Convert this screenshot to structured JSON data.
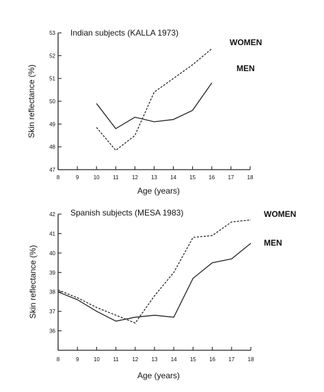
{
  "chart_data": [
    {
      "type": "line",
      "title": "Indian subjects (KALLA 1973)",
      "xlabel": "Age (years)",
      "ylabel": "Skin reflectance (%)",
      "xlim": [
        8,
        18
      ],
      "ylim": [
        47,
        53
      ],
      "xticks": [
        8,
        9,
        10,
        11,
        12,
        13,
        14,
        15,
        16,
        17,
        18
      ],
      "yticks": [
        47,
        48,
        49,
        50,
        51,
        52,
        53
      ],
      "series": [
        {
          "name": "MEN",
          "style": "solid",
          "x": [
            10,
            11,
            12,
            13,
            14,
            15,
            16
          ],
          "y": [
            49.9,
            48.8,
            49.3,
            49.1,
            49.2,
            49.6,
            50.8
          ]
        },
        {
          "name": "WOMEN",
          "style": "dashed",
          "x": [
            10,
            11,
            12,
            13,
            14,
            15,
            16
          ],
          "y": [
            48.85,
            47.85,
            48.5,
            50.4,
            51.0,
            51.6,
            52.3
          ]
        }
      ]
    },
    {
      "type": "line",
      "title": "Spanish subjects (MESA  1983)",
      "xlabel": "Age (years)",
      "ylabel": "Skin reflectance (%)",
      "xlim": [
        8,
        18
      ],
      "ylim": [
        35,
        42
      ],
      "xticks": [
        8,
        9,
        10,
        11,
        12,
        13,
        14,
        15,
        16,
        17,
        18
      ],
      "yticks": [
        36,
        37,
        38,
        39,
        40,
        41,
        42
      ],
      "series": [
        {
          "name": "MEN",
          "style": "solid",
          "x": [
            8,
            9,
            10,
            11,
            12,
            13,
            14,
            15,
            16,
            17,
            18
          ],
          "y": [
            38.0,
            37.6,
            37.0,
            36.5,
            36.7,
            36.8,
            36.7,
            38.7,
            39.5,
            39.7,
            40.5
          ]
        },
        {
          "name": "WOMEN",
          "style": "dashed",
          "x": [
            8,
            9,
            10,
            11,
            12,
            13,
            14,
            15,
            16,
            17,
            18
          ],
          "y": [
            38.1,
            37.7,
            37.2,
            36.8,
            36.4,
            37.8,
            39.0,
            40.8,
            40.9,
            41.6,
            41.7
          ]
        }
      ]
    }
  ]
}
